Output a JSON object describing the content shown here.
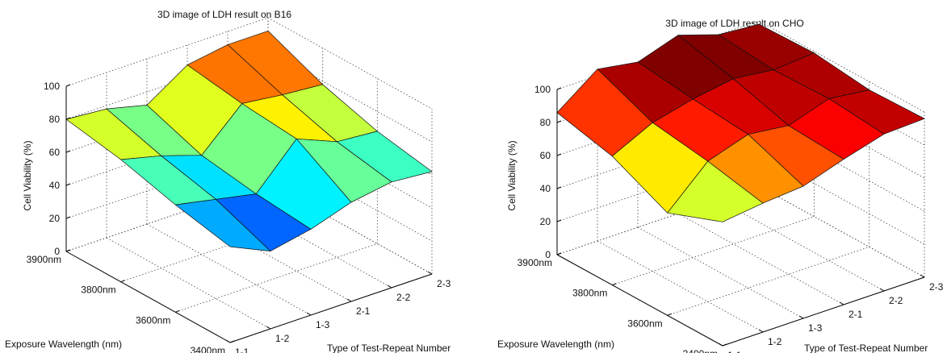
{
  "chart_data": [
    {
      "type": "surface",
      "title": "3D image of LDH result on B16",
      "xlabel": "Type of Test-Repeat Number",
      "ylabel": "Exposure Wavelength (nm)",
      "zlabel": "Cell Viability (%)",
      "x_categories": [
        "1-1",
        "1-2",
        "1-3",
        "2-1",
        "2-2",
        "2-3"
      ],
      "y_categories": [
        "3400nm",
        "3600nm",
        "3800nm",
        "3900nm"
      ],
      "zlim": [
        0,
        100
      ],
      "z_ticks": [
        0,
        20,
        40,
        60,
        80,
        100
      ],
      "grid": true,
      "colormap": "jet",
      "clim": [
        40,
        100
      ],
      "z_values": [
        [
          58,
          47,
          52,
          60,
          64,
          62
        ],
        [
          65,
          60,
          55,
          80,
          70,
          68
        ],
        [
          74,
          68,
          60,
          83,
          80,
          78
        ],
        [
          80,
          78,
          72,
          88,
          92,
          92
        ]
      ]
    },
    {
      "type": "surface",
      "title": "3D image of LDH result on CHO",
      "xlabel": "Type of Test-Repeat Number",
      "ylabel": "Exposure Wavelength (nm)",
      "zlabel": "Cell Viability (%)",
      "x_categories": [
        "1-1",
        "1-2",
        "1-3",
        "2-1",
        "2-2",
        "2-3"
      ],
      "y_categories": [
        "3400nm",
        "3600nm",
        "3800nm",
        "3900nm"
      ],
      "zlim": [
        0,
        100
      ],
      "z_ticks": [
        0,
        20,
        40,
        60,
        80,
        100
      ],
      "grid": true,
      "colormap": "jet",
      "clim": [
        40,
        100
      ],
      "z_values": [
        [
          75,
          78,
          80,
          88,
          95,
          96
        ],
        [
          62,
          85,
          93,
          90,
          98,
          95
        ],
        [
          78,
          90,
          96,
          100,
          97,
          99
        ],
        [
          86,
          104,
          100,
          108,
          100,
          98
        ]
      ]
    }
  ]
}
